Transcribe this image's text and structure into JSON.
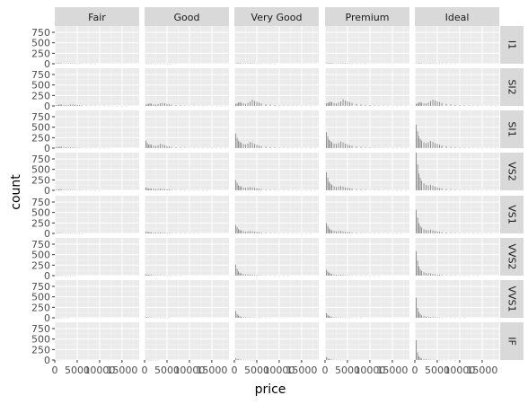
{
  "chart_data": {
    "type": "bar",
    "facet_type": "grid",
    "xlabel": "price",
    "ylabel": "count",
    "xlim": [
      0,
      18823
    ],
    "ylim": [
      0,
      900
    ],
    "x_ticks": [
      0,
      5000,
      10000,
      15000
    ],
    "x_tick_labels": [
      "0",
      "5000",
      "10000",
      "15000"
    ],
    "y_ticks": [
      0,
      250,
      500,
      750
    ],
    "y_tick_labels": [
      "0",
      "250",
      "500",
      "750"
    ],
    "bin_width": 100,
    "columns": [
      "Fair",
      "Good",
      "Very Good",
      "Premium",
      "Ideal"
    ],
    "rows": [
      "I1",
      "SI2",
      "SI1",
      "VS2",
      "VS1",
      "VVS2",
      "VVS1",
      "IF"
    ],
    "bin_centers": [
      300,
      600,
      900,
      1200,
      1500,
      2000,
      2500,
      3000,
      3500,
      4000,
      4500,
      5000,
      5500,
      6000,
      7000,
      8000,
      9000,
      10000,
      11000,
      12000,
      13000,
      14000,
      15000,
      16000,
      17000,
      18000
    ],
    "panels": [
      [
        [
          8,
          10,
          10,
          10,
          8,
          6,
          6,
          10,
          10,
          8,
          8,
          6,
          6,
          5,
          4,
          2,
          1,
          0,
          0,
          0,
          0,
          0,
          0,
          0,
          0,
          0
        ],
        [
          5,
          5,
          4,
          3,
          3,
          2,
          2,
          3,
          3,
          2,
          2,
          2,
          1,
          1,
          1,
          0,
          0,
          0,
          0,
          0,
          0,
          0,
          0,
          0,
          0,
          0
        ],
        [
          8,
          10,
          10,
          12,
          8,
          6,
          5,
          10,
          12,
          10,
          8,
          6,
          5,
          4,
          3,
          2,
          1,
          0,
          0,
          0,
          0,
          0,
          0,
          0,
          0,
          0
        ],
        [
          10,
          12,
          12,
          15,
          12,
          8,
          6,
          8,
          10,
          12,
          10,
          8,
          6,
          5,
          4,
          3,
          2,
          0,
          0,
          0,
          0,
          0,
          0,
          0,
          0,
          0
        ],
        [
          6,
          8,
          8,
          10,
          8,
          6,
          5,
          6,
          8,
          8,
          6,
          5,
          4,
          3,
          2,
          2,
          1,
          0,
          0,
          0,
          0,
          0,
          0,
          0,
          0,
          0
        ]
      ],
      [
        [
          15,
          20,
          30,
          35,
          30,
          25,
          20,
          25,
          30,
          35,
          30,
          25,
          20,
          15,
          10,
          8,
          5,
          3,
          2,
          2,
          1,
          1,
          1,
          1,
          0,
          0
        ],
        [
          30,
          40,
          50,
          60,
          55,
          40,
          35,
          45,
          60,
          70,
          60,
          50,
          40,
          30,
          20,
          15,
          10,
          8,
          6,
          5,
          4,
          3,
          2,
          2,
          1,
          1
        ],
        [
          50,
          60,
          80,
          90,
          80,
          60,
          50,
          70,
          100,
          150,
          120,
          100,
          80,
          60,
          40,
          30,
          20,
          15,
          10,
          8,
          6,
          5,
          4,
          3,
          2,
          2
        ],
        [
          60,
          70,
          90,
          100,
          90,
          70,
          60,
          80,
          110,
          160,
          130,
          110,
          90,
          70,
          50,
          35,
          25,
          18,
          12,
          10,
          8,
          6,
          5,
          4,
          3,
          2
        ],
        [
          50,
          60,
          80,
          90,
          80,
          60,
          60,
          80,
          120,
          150,
          130,
          110,
          90,
          70,
          50,
          35,
          25,
          18,
          12,
          10,
          8,
          6,
          5,
          4,
          3,
          2
        ]
      ],
      [
        [
          20,
          25,
          30,
          35,
          30,
          25,
          20,
          25,
          20,
          15,
          12,
          10,
          8,
          6,
          4,
          3,
          2,
          1,
          1,
          1,
          0,
          0,
          0,
          0,
          0,
          0
        ],
        [
          180,
          120,
          80,
          90,
          80,
          60,
          50,
          70,
          100,
          90,
          70,
          50,
          40,
          30,
          20,
          15,
          10,
          8,
          5,
          4,
          3,
          2,
          2,
          1,
          1,
          1
        ],
        [
          350,
          250,
          180,
          150,
          130,
          100,
          90,
          110,
          150,
          130,
          100,
          80,
          60,
          50,
          35,
          25,
          18,
          12,
          8,
          6,
          5,
          4,
          3,
          2,
          2,
          1
        ],
        [
          380,
          280,
          200,
          170,
          140,
          110,
          100,
          120,
          160,
          140,
          110,
          90,
          70,
          55,
          40,
          30,
          20,
          14,
          10,
          8,
          6,
          5,
          4,
          3,
          2,
          2
        ],
        [
          560,
          400,
          280,
          220,
          180,
          140,
          120,
          140,
          170,
          150,
          120,
          100,
          80,
          60,
          45,
          32,
          22,
          15,
          10,
          8,
          6,
          5,
          4,
          3,
          2,
          2
        ]
      ],
      [
        [
          10,
          15,
          20,
          25,
          20,
          15,
          12,
          15,
          12,
          10,
          8,
          6,
          5,
          4,
          3,
          2,
          1,
          1,
          0,
          0,
          0,
          0,
          0,
          0,
          0,
          0
        ],
        [
          70,
          50,
          40,
          45,
          40,
          35,
          30,
          35,
          40,
          35,
          30,
          25,
          20,
          15,
          10,
          8,
          5,
          3,
          2,
          1,
          1,
          1,
          0,
          0,
          0,
          0
        ],
        [
          250,
          180,
          120,
          100,
          90,
          70,
          60,
          70,
          80,
          70,
          60,
          50,
          40,
          30,
          20,
          15,
          10,
          8,
          6,
          4,
          3,
          2,
          2,
          1,
          1,
          1
        ],
        [
          430,
          300,
          200,
          160,
          130,
          100,
          80,
          90,
          100,
          90,
          70,
          60,
          50,
          40,
          30,
          20,
          15,
          10,
          8,
          6,
          5,
          4,
          3,
          2,
          2,
          1
        ],
        [
          900,
          620,
          400,
          300,
          230,
          170,
          130,
          120,
          130,
          110,
          90,
          70,
          55,
          45,
          32,
          22,
          15,
          10,
          8,
          6,
          5,
          4,
          3,
          2,
          2,
          1
        ]
      ],
      [
        [
          5,
          6,
          8,
          10,
          8,
          6,
          5,
          5,
          4,
          3,
          2,
          2,
          1,
          1,
          0,
          0,
          0,
          0,
          0,
          0,
          0,
          0,
          0,
          0,
          0,
          0
        ],
        [
          40,
          35,
          30,
          30,
          25,
          20,
          18,
          20,
          22,
          20,
          15,
          12,
          10,
          8,
          5,
          4,
          3,
          2,
          1,
          1,
          0,
          0,
          0,
          0,
          0,
          0
        ],
        [
          200,
          150,
          100,
          80,
          70,
          55,
          45,
          50,
          55,
          50,
          40,
          35,
          28,
          20,
          15,
          10,
          8,
          6,
          4,
          3,
          2,
          2,
          1,
          1,
          1,
          0
        ],
        [
          250,
          180,
          120,
          90,
          75,
          60,
          50,
          55,
          60,
          50,
          40,
          35,
          28,
          20,
          15,
          10,
          8,
          6,
          4,
          3,
          2,
          2,
          1,
          1,
          1,
          0
        ],
        [
          560,
          380,
          250,
          180,
          140,
          100,
          80,
          80,
          90,
          75,
          60,
          50,
          40,
          30,
          22,
          15,
          10,
          8,
          6,
          4,
          3,
          2,
          2,
          1,
          1,
          0
        ]
      ],
      [
        [
          3,
          4,
          5,
          5,
          4,
          3,
          2,
          2,
          1,
          1,
          1,
          0,
          0,
          0,
          0,
          0,
          0,
          0,
          0,
          0,
          0,
          0,
          0,
          0,
          0,
          0
        ],
        [
          30,
          25,
          20,
          18,
          15,
          12,
          10,
          10,
          8,
          6,
          5,
          4,
          3,
          2,
          1,
          1,
          0,
          0,
          0,
          0,
          0,
          0,
          0,
          0,
          0,
          0
        ],
        [
          260,
          160,
          100,
          70,
          55,
          40,
          30,
          30,
          28,
          22,
          18,
          14,
          10,
          8,
          5,
          3,
          2,
          1,
          1,
          1,
          0,
          0,
          0,
          0,
          0,
          0
        ],
        [
          140,
          100,
          70,
          50,
          40,
          30,
          22,
          22,
          20,
          16,
          12,
          10,
          8,
          6,
          4,
          3,
          2,
          1,
          1,
          1,
          0,
          0,
          0,
          0,
          0,
          0
        ],
        [
          580,
          360,
          220,
          150,
          110,
          80,
          60,
          55,
          50,
          40,
          32,
          25,
          20,
          15,
          10,
          7,
          5,
          3,
          2,
          1,
          1,
          1,
          0,
          0,
          0,
          0
        ]
      ],
      [
        [
          2,
          2,
          2,
          2,
          1,
          1,
          1,
          1,
          0,
          0,
          0,
          0,
          0,
          0,
          0,
          0,
          0,
          0,
          0,
          0,
          0,
          0,
          0,
          0,
          0,
          0
        ],
        [
          20,
          15,
          10,
          8,
          6,
          5,
          3,
          3,
          2,
          2,
          1,
          1,
          1,
          0,
          0,
          0,
          0,
          0,
          0,
          0,
          0,
          0,
          0,
          0,
          0,
          0
        ],
        [
          160,
          90,
          55,
          35,
          25,
          18,
          12,
          10,
          8,
          6,
          5,
          4,
          3,
          2,
          1,
          1,
          0,
          0,
          0,
          0,
          0,
          0,
          0,
          0,
          0,
          0
        ],
        [
          110,
          70,
          45,
          30,
          20,
          15,
          10,
          8,
          6,
          5,
          4,
          3,
          2,
          2,
          1,
          1,
          0,
          0,
          0,
          0,
          0,
          0,
          0,
          0,
          0,
          0
        ],
        [
          480,
          240,
          140,
          90,
          60,
          42,
          30,
          25,
          20,
          15,
          12,
          10,
          8,
          6,
          4,
          3,
          2,
          1,
          1,
          0,
          0,
          0,
          0,
          0,
          0,
          0
        ]
      ],
      [
        [
          0,
          1,
          0,
          1,
          0,
          0,
          0,
          0,
          0,
          0,
          0,
          0,
          0,
          0,
          0,
          0,
          0,
          0,
          0,
          0,
          0,
          0,
          0,
          0,
          0,
          0
        ],
        [
          5,
          4,
          3,
          2,
          2,
          1,
          1,
          1,
          0,
          0,
          0,
          0,
          0,
          0,
          0,
          0,
          0,
          0,
          0,
          0,
          0,
          0,
          0,
          0,
          0,
          0
        ],
        [
          40,
          25,
          15,
          10,
          8,
          6,
          4,
          3,
          2,
          2,
          1,
          1,
          0,
          0,
          0,
          0,
          0,
          0,
          0,
          0,
          0,
          0,
          0,
          0,
          0,
          0
        ],
        [
          70,
          40,
          25,
          15,
          10,
          8,
          6,
          4,
          3,
          2,
          2,
          1,
          1,
          0,
          0,
          0,
          0,
          0,
          0,
          0,
          0,
          0,
          0,
          0,
          0,
          0
        ],
        [
          470,
          180,
          90,
          55,
          35,
          25,
          18,
          14,
          10,
          8,
          6,
          5,
          4,
          3,
          2,
          1,
          1,
          0,
          0,
          0,
          0,
          0,
          0,
          0,
          0,
          0
        ]
      ]
    ],
    "grid": true,
    "legend": "none",
    "colors": {
      "bar": "#595959",
      "panel_bg": "#ebebeb",
      "grid_major": "#ffffff",
      "grid_minor": "#f5f5f5",
      "strip_bg": "#d9d9d9",
      "tick": "#333333"
    }
  }
}
